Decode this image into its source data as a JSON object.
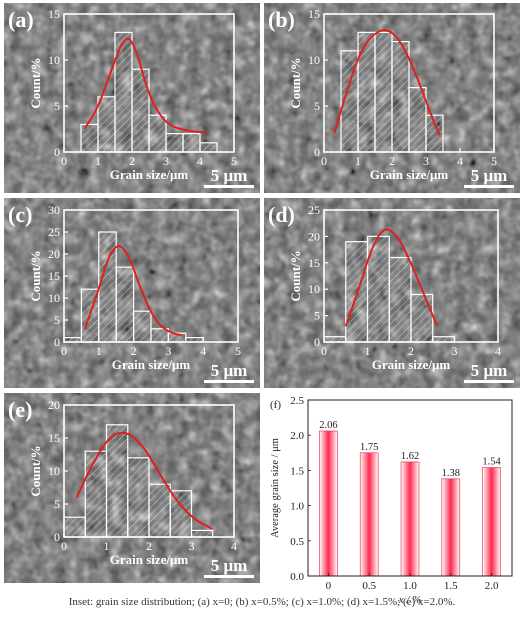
{
  "figure": {
    "caption": "Inset: grain size distribution; (a) x=0; (b) x=0.5%; (c) x=1.0%; (d) x=1.5%; (e) x=2.0%.",
    "scale_bar_label": "5 μm",
    "inset_xlabel": "Grain size/μm",
    "inset_ylabel": "Count/%"
  },
  "colors": {
    "sem_background": "#5b5b5b",
    "fit_curve": "#e02020",
    "bar_fill": "#ff3355",
    "axis_white": "#ffffff"
  },
  "chart_data": [
    {
      "panel": "(a)",
      "type": "bar",
      "xlabel": "Grain size/μm",
      "ylabel": "Count/%",
      "xlim": [
        0,
        5
      ],
      "ylim": [
        0,
        15
      ],
      "xticks": [
        0,
        1,
        2,
        3,
        4,
        5
      ],
      "yticks": [
        0,
        5,
        10,
        15
      ],
      "bin_centers": [
        0.75,
        1.25,
        1.75,
        2.25,
        2.75,
        3.25,
        3.75,
        4.25
      ],
      "values": [
        3,
        6,
        13,
        9,
        4,
        2,
        2,
        1
      ],
      "fit_curve": [
        [
          0.6,
          2.5
        ],
        [
          1.0,
          4.8
        ],
        [
          1.4,
          9.0
        ],
        [
          1.8,
          12.8
        ],
        [
          2.1,
          11.5
        ],
        [
          2.5,
          6.0
        ],
        [
          3.0,
          3.0
        ],
        [
          3.6,
          2.3
        ],
        [
          4.2,
          2.1
        ]
      ]
    },
    {
      "panel": "(b)",
      "type": "bar",
      "xlabel": "Grain size/μm",
      "ylabel": "Count/%",
      "xlim": [
        0,
        5
      ],
      "ylim": [
        0,
        15
      ],
      "xticks": [
        0,
        1,
        2,
        3,
        4,
        5
      ],
      "yticks": [
        0,
        5,
        10,
        15
      ],
      "bin_centers": [
        0.75,
        1.25,
        1.75,
        2.25,
        2.75,
        3.25
      ],
      "values": [
        11,
        13,
        13,
        12,
        7,
        4
      ],
      "fit_curve": [
        [
          0.3,
          2.0
        ],
        [
          0.7,
          7.0
        ],
        [
          1.1,
          11.2
        ],
        [
          1.5,
          13.0
        ],
        [
          1.9,
          13.4
        ],
        [
          2.3,
          11.8
        ],
        [
          2.7,
          8.5
        ],
        [
          3.1,
          4.5
        ],
        [
          3.4,
          1.8
        ]
      ]
    },
    {
      "panel": "(c)",
      "type": "bar",
      "xlabel": "Grain size/μm",
      "ylabel": "Count/%",
      "xlim": [
        0,
        5
      ],
      "ylim": [
        0,
        30
      ],
      "xticks": [
        0,
        1,
        2,
        3,
        4,
        5
      ],
      "yticks": [
        0,
        5,
        10,
        15,
        20,
        25,
        30
      ],
      "bin_centers": [
        0.25,
        0.75,
        1.25,
        1.75,
        2.25,
        2.75,
        3.25,
        3.75
      ],
      "values": [
        1,
        12,
        25,
        17,
        7,
        3,
        2,
        1
      ],
      "fit_curve": [
        [
          0.6,
          3.0
        ],
        [
          1.0,
          12.0
        ],
        [
          1.3,
          20.0
        ],
        [
          1.6,
          22.5
        ],
        [
          1.9,
          19.0
        ],
        [
          2.2,
          12.0
        ],
        [
          2.6,
          5.0
        ],
        [
          3.0,
          2.2
        ],
        [
          3.4,
          1.5
        ]
      ]
    },
    {
      "panel": "(d)",
      "type": "bar",
      "xlabel": "Grain size/μm",
      "ylabel": "Count/%",
      "xlim": [
        0,
        4
      ],
      "ylim": [
        0,
        25
      ],
      "xticks": [
        0,
        1,
        2,
        3,
        4
      ],
      "yticks": [
        0,
        5,
        10,
        15,
        20,
        25
      ],
      "bin_centers": [
        0.25,
        0.75,
        1.25,
        1.75,
        2.25,
        2.75
      ],
      "values": [
        1,
        19,
        20,
        16,
        9,
        1
      ],
      "fit_curve": [
        [
          0.5,
          3.0
        ],
        [
          0.8,
          10.0
        ],
        [
          1.1,
          18.0
        ],
        [
          1.4,
          22.0
        ],
        [
          1.7,
          20.0
        ],
        [
          2.0,
          15.0
        ],
        [
          2.3,
          9.0
        ],
        [
          2.6,
          3.0
        ]
      ]
    },
    {
      "panel": "(e)",
      "type": "bar",
      "xlabel": "Grain size/μm",
      "ylabel": "Count/%",
      "xlim": [
        0,
        4
      ],
      "ylim": [
        0,
        20
      ],
      "xticks": [
        0,
        1,
        2,
        3,
        4
      ],
      "yticks": [
        0,
        5,
        10,
        15,
        20
      ],
      "bin_centers": [
        0.25,
        0.75,
        1.25,
        1.75,
        2.25,
        2.75,
        3.25
      ],
      "values": [
        3,
        13,
        17,
        12,
        8,
        7,
        1
      ],
      "fit_curve": [
        [
          0.3,
          6.0
        ],
        [
          0.7,
          11.5
        ],
        [
          1.1,
          15.5
        ],
        [
          1.5,
          16.0
        ],
        [
          1.9,
          13.5
        ],
        [
          2.3,
          9.0
        ],
        [
          2.7,
          5.0
        ],
        [
          3.1,
          2.5
        ],
        [
          3.5,
          1.2
        ]
      ]
    },
    {
      "panel": "(f)",
      "type": "bar",
      "xlabel": "x / %",
      "ylabel": "Average grain size / μm",
      "ylim": [
        0,
        2.5
      ],
      "yticks": [
        "0.0",
        "0.5",
        "1.0",
        "1.5",
        "2.0",
        "2.5"
      ],
      "categories": [
        "0",
        "0.5",
        "1.0",
        "1.5",
        "2.0"
      ],
      "values": [
        2.06,
        1.75,
        1.62,
        1.38,
        1.54
      ],
      "value_labels": [
        "2.06",
        "1.75",
        "1.62",
        "1.38",
        "1.54"
      ]
    }
  ]
}
